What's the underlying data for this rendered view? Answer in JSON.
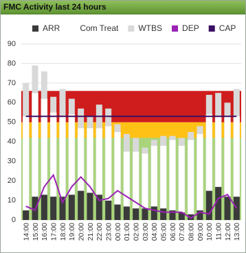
{
  "header": {
    "title": "FMC Activity last 24 hours"
  },
  "chart_data": {
    "type": "stacked-bar-line",
    "categories": [
      "14:00",
      "15:00",
      "16:00",
      "17:00",
      "18:00",
      "19:00",
      "20:00",
      "21:00",
      "22:00",
      "23:00",
      "00:00",
      "01:00",
      "02:00",
      "03:00",
      "04:00",
      "05:00",
      "06:00",
      "07:00",
      "08:00",
      "09:00",
      "10:00",
      "11:00",
      "12:00",
      "13:00"
    ],
    "series": [
      {
        "name": "ARR",
        "kind": "bar",
        "color": "#3a3a3a",
        "values": [
          5,
          12,
          13,
          12,
          12,
          13,
          15,
          14,
          13,
          10,
          8,
          7,
          6,
          6,
          7,
          6,
          5,
          4,
          3,
          5,
          15,
          17,
          12,
          12
        ]
      },
      {
        "name": "Com Treat",
        "kind": "bar",
        "color": "#ffffff",
        "values": [
          48,
          53,
          49,
          43,
          41,
          41,
          32,
          33,
          34,
          38,
          37,
          28,
          29,
          28,
          31,
          32,
          36,
          34,
          38,
          39,
          39,
          36,
          41,
          41
        ]
      },
      {
        "name": "WTBS",
        "kind": "bar",
        "color": "#d9d9d9",
        "values": [
          17,
          14,
          14,
          8,
          14,
          8,
          10,
          6,
          12,
          9,
          4,
          9,
          7,
          3,
          3,
          5,
          2,
          4,
          4,
          4,
          10,
          12,
          7,
          14
        ]
      },
      {
        "name": "DEP",
        "kind": "line",
        "color": "#9b22b5",
        "values": [
          7,
          5,
          17,
          23,
          9,
          17,
          22,
          17,
          10,
          11,
          15,
          12,
          9,
          6,
          5,
          4,
          4,
          4,
          1,
          4,
          3,
          11,
          13,
          6
        ]
      },
      {
        "name": "CAP",
        "kind": "line",
        "color": "#3b0f63",
        "values": [
          53,
          53,
          53,
          53,
          53,
          53,
          53,
          53,
          53,
          53,
          53,
          53,
          53,
          53,
          53,
          53,
          53,
          53,
          53,
          53,
          53,
          53,
          53,
          53
        ]
      }
    ],
    "bands": [
      {
        "from": 0,
        "to": 42,
        "color": "#a9d47c"
      },
      {
        "from": 42,
        "to": 50,
        "color": "#ffc116"
      },
      {
        "from": 50,
        "to": 66,
        "color": "#cf1d1d"
      }
    ],
    "ylim": [
      0,
      90
    ],
    "yticks": [
      0,
      10,
      20,
      30,
      40,
      50,
      60,
      70,
      80,
      90
    ],
    "grid": true
  }
}
